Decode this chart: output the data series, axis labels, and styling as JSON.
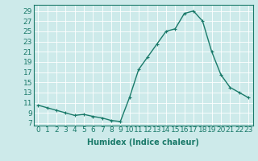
{
  "x": [
    0,
    1,
    2,
    3,
    4,
    5,
    6,
    7,
    8,
    9,
    10,
    11,
    12,
    13,
    14,
    15,
    16,
    17,
    18,
    19,
    20,
    21,
    22,
    23
  ],
  "y": [
    10.5,
    10.0,
    9.5,
    9.0,
    8.5,
    8.7,
    8.3,
    8.0,
    7.5,
    7.3,
    12.0,
    17.5,
    20.0,
    22.5,
    25.0,
    25.5,
    28.5,
    29.0,
    27.0,
    21.0,
    16.5,
    14.0,
    13.0,
    12.0
  ],
  "line_color": "#1a7a6a",
  "marker": "+",
  "marker_size": 3,
  "bg_color": "#cdeaea",
  "grid_color": "#ffffff",
  "xlabel": "Humidex (Indice chaleur)",
  "ylabel_ticks": [
    7,
    9,
    11,
    13,
    15,
    17,
    19,
    21,
    23,
    25,
    27,
    29
  ],
  "xtick_labels": [
    "0",
    "1",
    "2",
    "3",
    "4",
    "5",
    "6",
    "7",
    "8",
    "9",
    "10",
    "11",
    "12",
    "13",
    "14",
    "15",
    "16",
    "17",
    "18",
    "19",
    "20",
    "21",
    "22",
    "23"
  ],
  "ylim": [
    6.5,
    30.2
  ],
  "xlim": [
    -0.5,
    23.5
  ],
  "xlabel_fontsize": 7,
  "tick_fontsize": 6.5,
  "line_width": 1.0
}
